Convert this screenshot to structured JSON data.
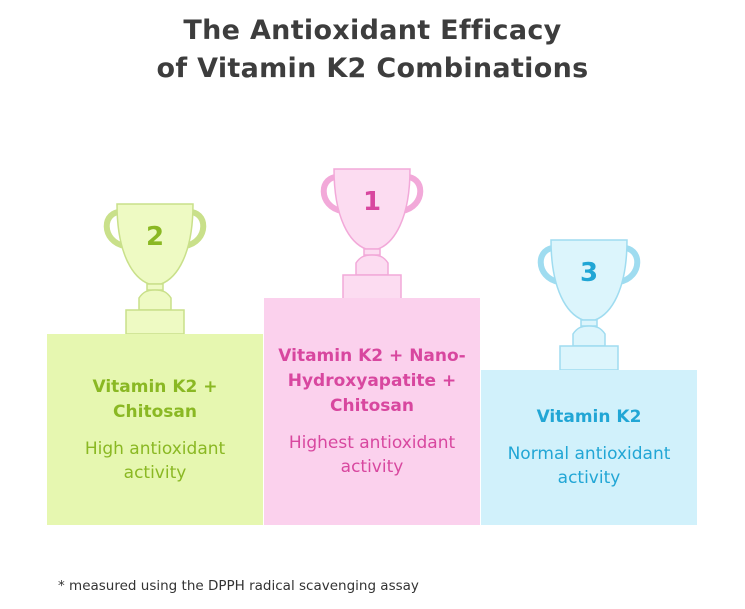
{
  "title": {
    "line1": "The Antioxidant Efficacy",
    "line2": "of Vitamin K2 Combinations"
  },
  "podium": [
    {
      "rank": "2",
      "name": "Vitamin K2 + Chitosan",
      "description": "High antioxidant activity",
      "colors": {
        "fill": "#e6f7b0",
        "trophy_fill": "#eefac3",
        "trophy_stroke": "#c9e08a",
        "text": "#8ab823",
        "rank": "#8ab823"
      }
    },
    {
      "rank": "1",
      "name": "Vitamin K2 + Nano-Hydroxyapatite + Chitosan",
      "description": "Highest antioxidant activity",
      "colors": {
        "fill": "#fbd1ed",
        "trophy_fill": "#fcdcf1",
        "trophy_stroke": "#f2a9d9",
        "text": "#d8479f",
        "rank": "#d8479f"
      }
    },
    {
      "rank": "3",
      "name": "Vitamin K2",
      "description": "Normal antioxidant activity",
      "colors": {
        "fill": "#d1f1fb",
        "trophy_fill": "#dcf5fc",
        "trophy_stroke": "#9fdcf0",
        "text": "#21a6d5",
        "rank": "#21a6d5"
      }
    }
  ],
  "footnote": "* measured using the DPPH radical scavenging assay"
}
